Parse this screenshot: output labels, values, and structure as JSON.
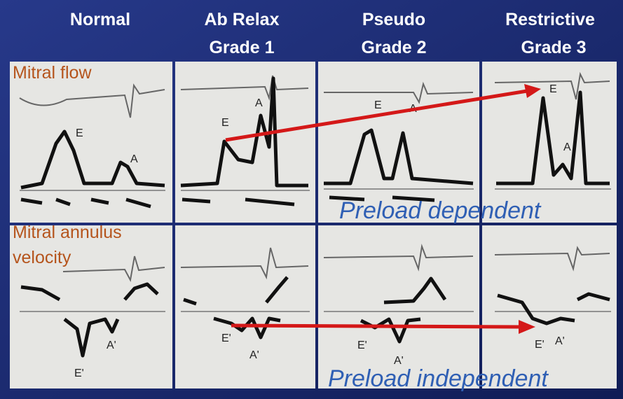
{
  "header": {
    "columns": [
      {
        "lines": [
          "Normal"
        ]
      },
      {
        "lines": [
          "Ab Relax",
          "Grade 1"
        ]
      },
      {
        "lines": [
          "Pseudo",
          "Grade 2"
        ]
      },
      {
        "lines": [
          "Restrictive",
          "Grade 3"
        ]
      }
    ]
  },
  "rows": [
    {
      "label": [
        "Mitral flow"
      ]
    },
    {
      "label": [
        "Mitral annulus",
        "velocity"
      ]
    }
  ],
  "annotations": [
    "Preload dependent",
    "Preload independent"
  ],
  "wave_labels": {
    "mitral_flow": [
      "E",
      "A",
      "E",
      "A",
      "E",
      "A",
      "E",
      "A"
    ],
    "annulus": [
      "E'",
      "A'",
      "E'",
      "A'",
      "E'",
      "A'",
      "E'",
      "A'"
    ]
  }
}
